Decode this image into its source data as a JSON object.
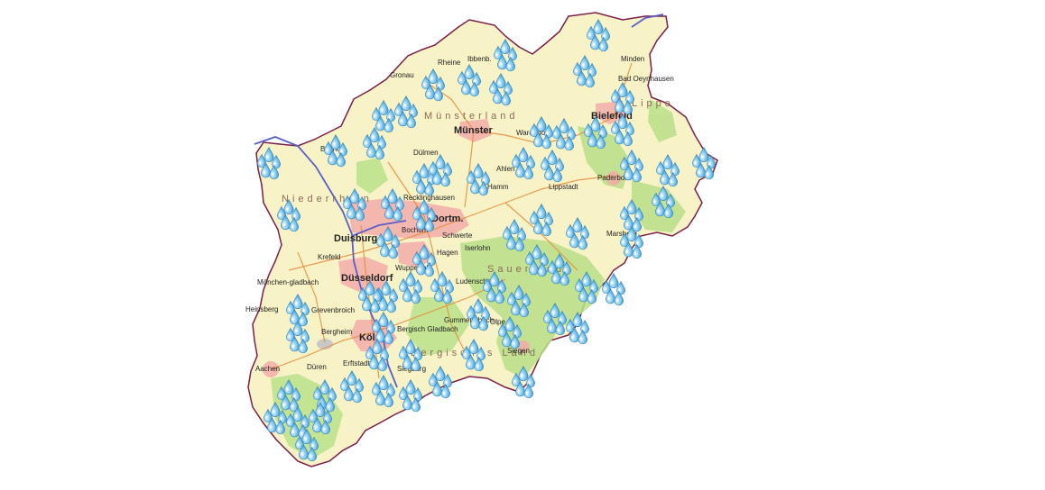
{
  "map": {
    "colors": {
      "land": "#f7f3c6",
      "forest": "#b9e08a",
      "urban": "#f4a9a9",
      "river": "#5a5fc8",
      "border": "#7a1f4a",
      "road": "#e88a3a",
      "drop_light": "#cfeaf8",
      "drop_dark": "#3a9fd8"
    },
    "marker_icon": "rain-drop-icon",
    "cities_major": [
      "Münster",
      "Dortm.",
      "Duisburg",
      "Düsseldorf",
      "Bielefeld",
      "Köln"
    ],
    "cities_minor": [
      "Gronau",
      "Rheine",
      "Ibbenb.",
      "Minden",
      "Bad Oeynhausen",
      "Warendorf",
      "Dülmen",
      "Ahlen",
      "Lippstadt",
      "Paderborn",
      "Bocholt",
      "Recklinghausen",
      "Schwerte",
      "Iserlohn",
      "Hagen",
      "Krefeld",
      "Mönchen-gladbach",
      "Grevenbroich",
      "Heinsberg",
      "Bergheim",
      "Bergisch Gladbach",
      "Gummers-bach",
      "Siegen",
      "Aachen",
      "Düren",
      "Erftstadt",
      "Siegburg",
      "Ludenscheid",
      "Wuppertal",
      "Hamm",
      "Olpe",
      "Marsberg",
      "Bochum"
    ],
    "regions": [
      "Münsterland",
      "Niederrhein",
      "Sauerland",
      "Bergisches Land",
      "Lippe"
    ]
  }
}
